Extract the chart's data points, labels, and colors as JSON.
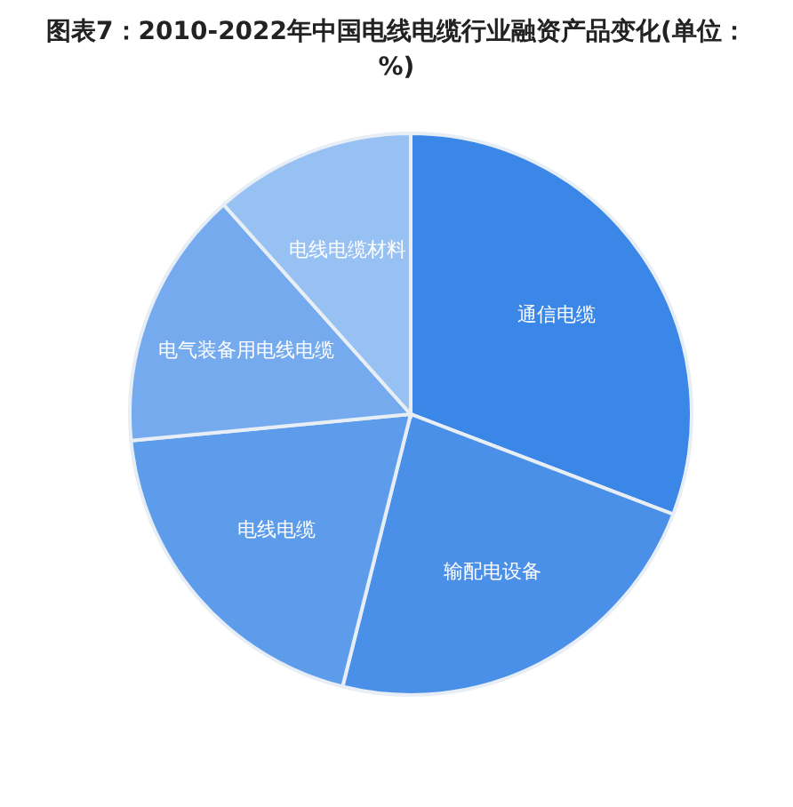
{
  "chart_data": {
    "type": "pie",
    "title": "图表7：2010-2022年中国电线电缆行业融资产品变化(单位：%)",
    "categories": [
      "通信电缆",
      "输配电设备",
      "电线电缆",
      "电气装备用电线电缆",
      "电线电缆材料"
    ],
    "values": [
      30.8,
      23.1,
      19.6,
      14.9,
      11.6
    ],
    "colors": [
      "#3b87e7",
      "#4a90e8",
      "#5c9cea",
      "#75abee",
      "#97c0f3"
    ],
    "legend": false
  }
}
